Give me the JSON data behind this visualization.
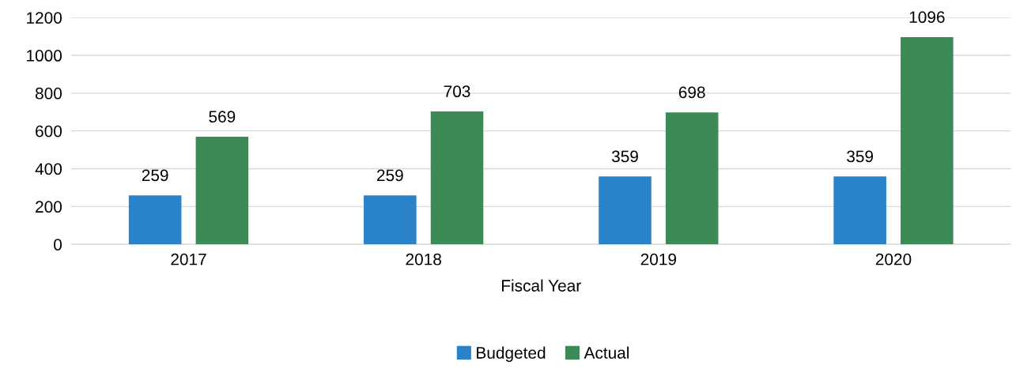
{
  "chart_data": {
    "type": "bar",
    "xlabel": "Fiscal Year",
    "categories": [
      "2017",
      "2018",
      "2019",
      "2020"
    ],
    "series": [
      {
        "name": "Budgeted",
        "color": "#2a83c9",
        "values": [
          259,
          259,
          359,
          359
        ]
      },
      {
        "name": "Actual",
        "color": "#3c8a55",
        "values": [
          569,
          703,
          698,
          1096
        ]
      }
    ],
    "ylim": [
      0,
      1200
    ],
    "yticks": [
      0,
      200,
      400,
      600,
      800,
      1000,
      1200
    ],
    "grid": "y",
    "legend": "bottom",
    "data_labels": true
  }
}
